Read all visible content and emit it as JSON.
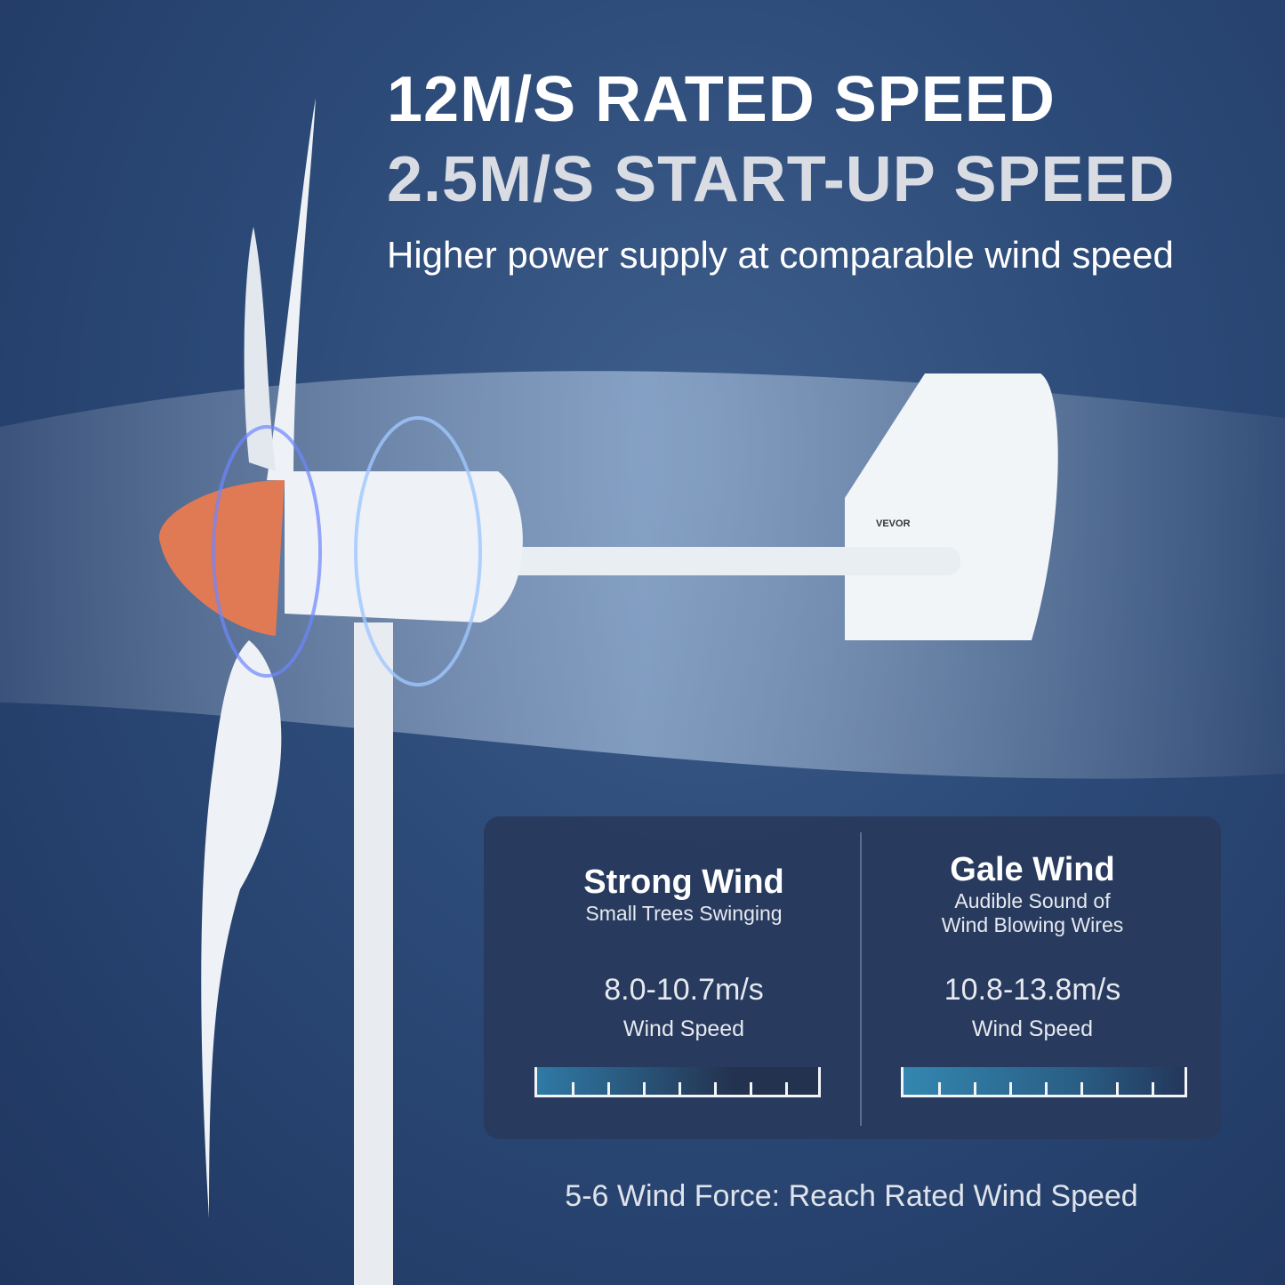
{
  "headline": {
    "line1": "12M/S RATED SPEED",
    "line2": "2.5M/S START-UP SPEED",
    "subtitle": "Higher power supply at comparable wind speed"
  },
  "product": {
    "brand_label": "VEVOR",
    "hub_color": "#e07a55"
  },
  "panel": {
    "columns": [
      {
        "title": "Strong Wind",
        "description": [
          "Small Trees Swinging"
        ],
        "value": "8.0-10.7m/s",
        "label": "Wind Speed",
        "level": 0.4
      },
      {
        "title": "Gale Wind",
        "description": [
          "Audible Sound of",
          "Wind Blowing Wires"
        ],
        "value": "10.8-13.8m/s",
        "label": "Wind Speed",
        "level": 0.7
      }
    ]
  },
  "footer": "5-6 Wind Force: Reach Rated Wind Speed"
}
